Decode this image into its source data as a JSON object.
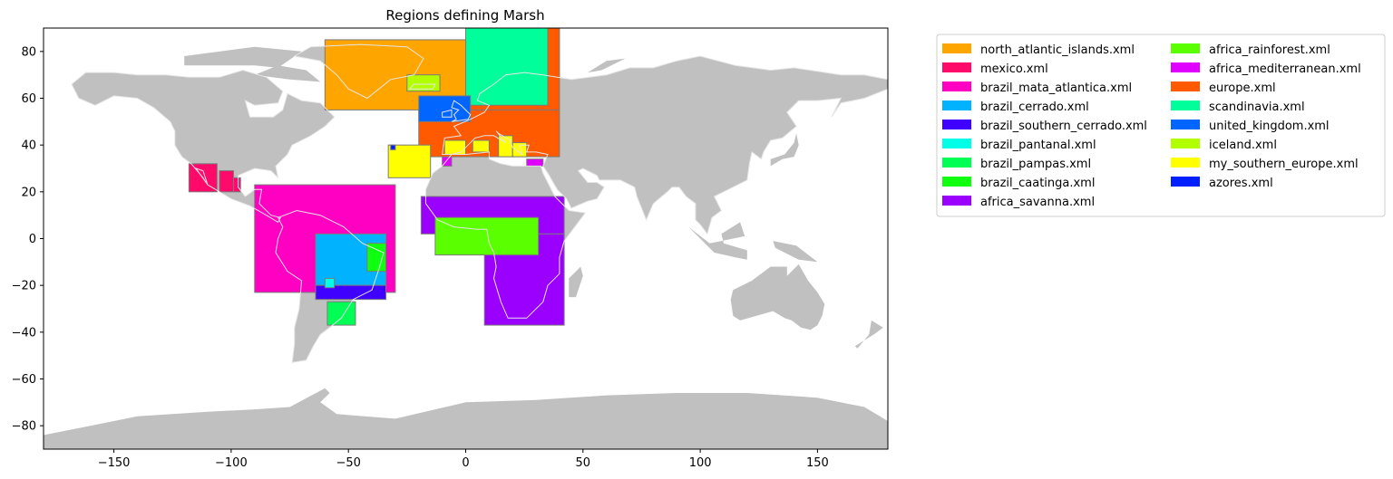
{
  "chart_data": {
    "type": "map",
    "title": "Regions defining Marsh",
    "xlim": [
      -180,
      180
    ],
    "ylim": [
      -90,
      90
    ],
    "xticks": [
      -150,
      -100,
      -50,
      0,
      50,
      100,
      150
    ],
    "yticks": [
      -80,
      -60,
      -40,
      -20,
      0,
      20,
      40,
      60,
      80
    ],
    "grid": false,
    "legend_position": "outside-right",
    "legend_columns": 2,
    "land_color": "#c0c0c0",
    "coast_color": "#e6e6e6",
    "region_edge_color": "#7a7a7a",
    "regions": [
      {
        "name": "north_atlantic_islands.xml",
        "color": "#ffa500",
        "boxes": [
          [
            -60,
            55,
            5,
            85
          ]
        ]
      },
      {
        "name": "mexico.xml",
        "color": "#ff0a6a",
        "boxes": [
          [
            -118,
            20,
            -106,
            32
          ],
          [
            -105,
            20,
            -99,
            29
          ],
          [
            -99,
            20,
            -96,
            26
          ]
        ]
      },
      {
        "name": "brazil_mata_atlantica.xml",
        "color": "#ff00c2",
        "boxes": [
          [
            -90,
            -23,
            -30,
            23
          ]
        ]
      },
      {
        "name": "brazil_cerrado.xml",
        "color": "#00b2ff",
        "boxes": [
          [
            -64,
            -20,
            -34,
            2
          ]
        ]
      },
      {
        "name": "brazil_southern_cerrado.xml",
        "color": "#4000ff",
        "boxes": [
          [
            -64,
            -26,
            -34,
            -20
          ]
        ]
      },
      {
        "name": "brazil_pantanal.xml",
        "color": "#00ffe6",
        "boxes": [
          [
            -60,
            -21,
            -56,
            -17
          ]
        ]
      },
      {
        "name": "brazil_pampas.xml",
        "color": "#00ff55",
        "boxes": [
          [
            -59,
            -37,
            -47,
            -27
          ]
        ]
      },
      {
        "name": "brazil_caatinga.xml",
        "color": "#10ff10",
        "boxes": [
          [
            -42,
            -14,
            -34,
            -2
          ]
        ]
      },
      {
        "name": "africa_savanna.xml",
        "color": "#9b00ff",
        "boxes": [
          [
            -19,
            2,
            42,
            18
          ],
          [
            8,
            -37,
            42,
            2
          ]
        ]
      },
      {
        "name": "africa_rainforest.xml",
        "color": "#5aff00",
        "boxes": [
          [
            -13,
            -7,
            31,
            9
          ]
        ]
      },
      {
        "name": "africa_mediterranean.xml",
        "color": "#e000ff",
        "boxes": [
          [
            -10,
            31,
            -6,
            35
          ],
          [
            26,
            31,
            33,
            34
          ]
        ]
      },
      {
        "name": "europe.xml",
        "color": "#ff5a00",
        "boxes": [
          [
            -20,
            35,
            40,
            55
          ],
          [
            2,
            55,
            40,
            90
          ]
        ]
      },
      {
        "name": "scandinavia.xml",
        "color": "#00ff9a",
        "boxes": [
          [
            0,
            57,
            35,
            90
          ]
        ]
      },
      {
        "name": "united_kingdom.xml",
        "color": "#0066ff",
        "boxes": [
          [
            -20,
            50,
            2,
            61
          ]
        ]
      },
      {
        "name": "iceland.xml",
        "color": "#b2ff00",
        "boxes": [
          [
            -25,
            63,
            -11,
            70
          ]
        ]
      },
      {
        "name": "my_southern_europe.xml",
        "color": "#ffff00",
        "boxes": [
          [
            -33,
            26,
            -15,
            40
          ],
          [
            -9,
            36,
            0,
            42
          ],
          [
            3,
            37,
            10,
            42
          ],
          [
            14,
            35,
            20,
            44
          ],
          [
            20,
            35,
            26,
            41
          ]
        ]
      },
      {
        "name": "azores.xml",
        "color": "#0020ff",
        "boxes": [
          [
            -32,
            38,
            -30,
            40
          ]
        ]
      }
    ]
  }
}
